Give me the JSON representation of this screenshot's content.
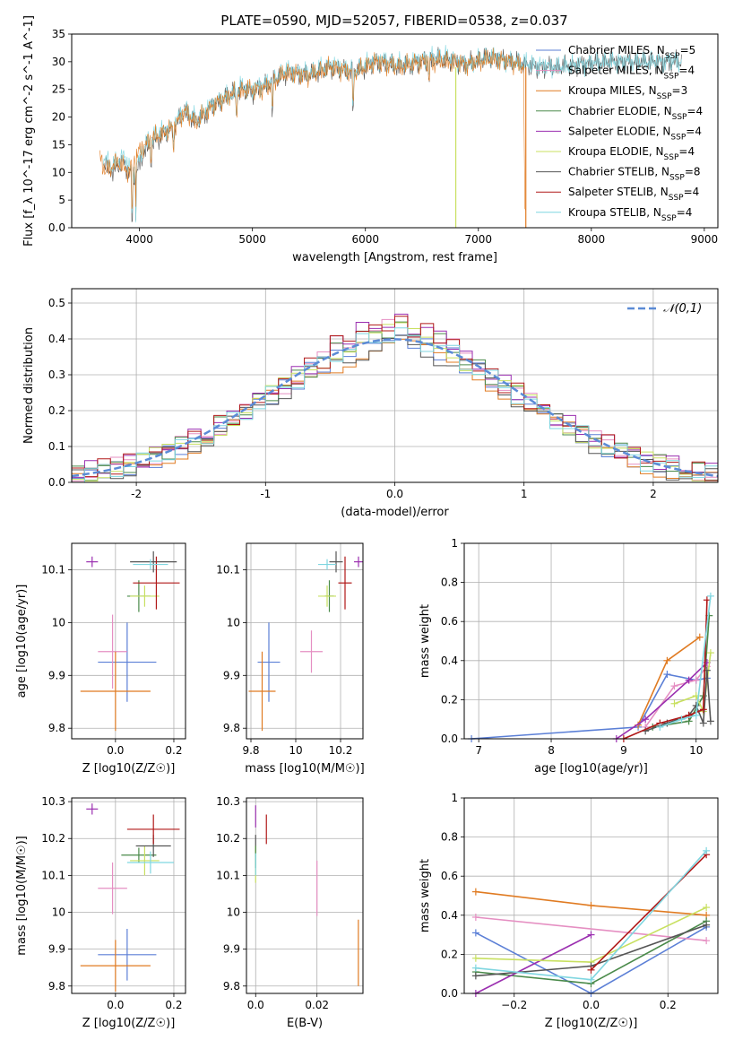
{
  "figure_title": "PLATE=0590, MJD=52057, FIBERID=0538, z=0.037",
  "colors": {
    "Chabrier MILES": "#5b7fd6",
    "Salpeter MILES": "#e58fc2",
    "Kroupa MILES": "#e07b22",
    "Chabrier ELODIE": "#4a8a4a",
    "Salpeter ELODIE": "#9b2fb0",
    "Kroupa ELODIE": "#c8e060",
    "Chabrier STELIB": "#555555",
    "Salpeter STELIB": "#b01818",
    "Kroupa STELIB": "#7fd6e0"
  },
  "chart_data": [
    {
      "id": "spectrum",
      "type": "line",
      "title": "PLATE=0590, MJD=52057, FIBERID=0538, z=0.037",
      "xlabel": "wavelength [Angstrom, rest frame]",
      "ylabel": "Flux [f_λ 10^-17 erg cm^-2 s^-1 A^-1]",
      "xlim": [
        3400,
        9120
      ],
      "ylim": [
        0,
        35
      ],
      "xticks": [
        4000,
        5000,
        6000,
        7000,
        8000,
        9000
      ],
      "yticks": [
        0,
        5,
        10,
        15,
        20,
        25,
        30,
        35
      ],
      "grid": false,
      "legend_position": "right",
      "legend": [
        "Chabrier MILES, N_SSP=5",
        "Salpeter MILES, N_SSP=4",
        "Kroupa MILES, N_SSP=3",
        "Chabrier ELODIE, N_SSP=4",
        "Salpeter ELODIE, N_SSP=4",
        "Kroupa ELODIE, N_SSP=4",
        "Chabrier STELIB, N_SSP=8",
        "Salpeter STELIB, N_SSP=4",
        "Kroupa STELIB, N_SSP=4"
      ],
      "series": [
        {
          "name": "Chabrier STELIB",
          "x": [
            3680,
            3750,
            3850,
            3950,
            4050,
            4150,
            4300,
            4400,
            4500,
            4650,
            4800,
            4900,
            5000,
            5150,
            5300,
            5500,
            5700,
            5900,
            6100,
            6300,
            6500,
            6700,
            6900,
            7100,
            7300,
            7500,
            7700,
            7900,
            8100,
            8300,
            8500,
            8700,
            8800
          ],
          "y": [
            12,
            10,
            12,
            9,
            14,
            16,
            18,
            21,
            19,
            22,
            24,
            25,
            24.5,
            26,
            28,
            27.5,
            29,
            28,
            30,
            29,
            30,
            30.5,
            29.5,
            31,
            30,
            29,
            29,
            29.5,
            30,
            30,
            30,
            30,
            30
          ]
        },
        {
          "name": "Kroupa STELIB",
          "x": [
            3680,
            3750,
            3850,
            3950,
            4050,
            4150,
            4300,
            4400,
            4500,
            4650,
            4800,
            4900,
            5000,
            5150,
            5300,
            5500,
            5700,
            5900,
            6100,
            6300,
            6500,
            6700,
            6900,
            7100,
            7300,
            7500,
            7700,
            7900,
            8100,
            8300,
            8500,
            8700,
            8800
          ],
          "y": [
            13,
            11,
            13,
            10,
            15,
            17,
            18.5,
            21.5,
            19.5,
            22.5,
            24,
            25.5,
            25,
            26.5,
            28.5,
            28,
            29.5,
            28.5,
            30.5,
            29.5,
            30.5,
            31,
            29.5,
            31,
            30,
            29.5,
            29,
            29.5,
            30,
            30,
            30,
            30.2,
            30
          ]
        },
        {
          "name": "Kroupa MILES",
          "x": [
            3650,
            3700,
            3800,
            3900,
            4000,
            4100,
            4200,
            4300,
            4400,
            4500,
            4650,
            4800,
            4950,
            5100,
            5300,
            5500,
            5700,
            5900,
            6100,
            6300,
            6500,
            6700,
            6900,
            7100,
            7300,
            7400,
            7410,
            7420
          ],
          "y": [
            13,
            10,
            12,
            10,
            14,
            16,
            17,
            18,
            21,
            19,
            22,
            24,
            25,
            25,
            28,
            27.5,
            29,
            28,
            30,
            29,
            30,
            30,
            29.5,
            30.5,
            30,
            29,
            5,
            0
          ]
        }
      ],
      "annotations": [
        {
          "series": "Kroupa ELODIE",
          "type": "drop",
          "x": 6800,
          "to": 0
        },
        {
          "series": "Kroupa MILES",
          "type": "cutoff",
          "x": 7420,
          "to": 0
        }
      ]
    },
    {
      "id": "residuals",
      "type": "histogram",
      "xlabel": "(data-model)/error",
      "ylabel": "Normed distribution",
      "xlim": [
        -2.5,
        2.5
      ],
      "ylim": [
        0,
        0.54
      ],
      "xticks": [
        -2,
        -1,
        0,
        1,
        2
      ],
      "yticks": [
        0.0,
        0.1,
        0.2,
        0.3,
        0.4,
        0.5
      ],
      "grid": true,
      "legend_position": "top-right",
      "reference_curve": {
        "name": "𝒩(0,1)",
        "mu": 0,
        "sigma": 1,
        "style": "dashed"
      },
      "bin_edges": [
        -2.5,
        -2.4,
        -2.3,
        -2.2,
        -2.1,
        -2.0,
        -1.9,
        -1.8,
        -1.7,
        -1.6,
        -1.5,
        -1.4,
        -1.3,
        -1.2,
        -1.1,
        -1.0,
        -0.9,
        -0.8,
        -0.7,
        -0.6,
        -0.5,
        -0.4,
        -0.3,
        -0.2,
        -0.1,
        0.0,
        0.1,
        0.2,
        0.3,
        0.4,
        0.5,
        0.6,
        0.7,
        0.8,
        0.9,
        1.0,
        1.1,
        1.2,
        1.3,
        1.4,
        1.5,
        1.6,
        1.7,
        1.8,
        1.9,
        2.0,
        2.1,
        2.2,
        2.3,
        2.4,
        2.5
      ],
      "base_values": [
        0.018,
        0.022,
        0.03,
        0.036,
        0.045,
        0.054,
        0.066,
        0.08,
        0.096,
        0.11,
        0.13,
        0.15,
        0.17,
        0.19,
        0.215,
        0.24,
        0.262,
        0.285,
        0.31,
        0.33,
        0.35,
        0.365,
        0.38,
        0.39,
        0.4,
        0.4,
        0.39,
        0.38,
        0.365,
        0.35,
        0.33,
        0.31,
        0.285,
        0.262,
        0.24,
        0.215,
        0.19,
        0.17,
        0.15,
        0.13,
        0.11,
        0.096,
        0.08,
        0.066,
        0.054,
        0.045,
        0.036,
        0.03,
        0.022,
        0.018
      ],
      "series_offsets": [
        0.0,
        0.03,
        -0.02,
        0.025,
        0.045,
        0.02,
        -0.015,
        0.04,
        0.01
      ]
    },
    {
      "id": "age_vs_Z",
      "type": "errorbar",
      "xlabel": "Z [log10(Z/Z☉)]",
      "ylabel": "age  [log10(age/yr)]",
      "xlim": [
        -0.15,
        0.24
      ],
      "ylim": [
        9.78,
        10.15
      ],
      "xticks": [
        0.0,
        0.2
      ],
      "yticks": [
        9.8,
        9.9,
        10.0,
        10.1
      ],
      "grid": true,
      "points": [
        {
          "series": "Chabrier MILES",
          "x": 0.04,
          "y": 9.925,
          "xerr": 0.1,
          "yerr": 0.075
        },
        {
          "series": "Salpeter MILES",
          "x": -0.01,
          "y": 9.945,
          "xerr": 0.05,
          "yerr": 0.07
        },
        {
          "series": "Kroupa MILES",
          "x": 0.0,
          "y": 9.87,
          "xerr": 0.12,
          "yerr": 0.075
        },
        {
          "series": "Chabrier ELODIE",
          "x": 0.08,
          "y": 10.05,
          "xerr": 0.04,
          "yerr": 0.03
        },
        {
          "series": "Salpeter ELODIE",
          "x": -0.08,
          "y": 10.115,
          "xerr": 0.02,
          "yerr": 0.01
        },
        {
          "series": "Kroupa ELODIE",
          "x": 0.1,
          "y": 10.05,
          "xerr": 0.05,
          "yerr": 0.02
        },
        {
          "series": "Chabrier STELIB",
          "x": 0.13,
          "y": 10.115,
          "xerr": 0.08,
          "yerr": 0.02
        },
        {
          "series": "Salpeter STELIB",
          "x": 0.14,
          "y": 10.075,
          "xerr": 0.08,
          "yerr": 0.05
        },
        {
          "series": "Kroupa STELIB",
          "x": 0.12,
          "y": 10.11,
          "xerr": 0.06,
          "yerr": 0.01
        }
      ]
    },
    {
      "id": "age_vs_mass",
      "type": "errorbar",
      "xlabel": "mass [log10(M/M☉)]",
      "ylabel": "",
      "xlim": [
        9.78,
        10.3
      ],
      "ylim": [
        9.78,
        10.15
      ],
      "xticks": [
        9.8,
        10.0,
        10.2
      ],
      "yticks": [
        9.8,
        9.9,
        10.0,
        10.1
      ],
      "grid": true,
      "points": [
        {
          "series": "Chabrier MILES",
          "x": 9.88,
          "y": 9.925,
          "xerr": 0.05,
          "yerr": 0.075
        },
        {
          "series": "Salpeter MILES",
          "x": 10.07,
          "y": 9.945,
          "xerr": 0.05,
          "yerr": 0.04
        },
        {
          "series": "Kroupa MILES",
          "x": 9.85,
          "y": 9.87,
          "xerr": 0.06,
          "yerr": 0.075
        },
        {
          "series": "Chabrier ELODIE",
          "x": 10.15,
          "y": 10.05,
          "xerr": 0.02,
          "yerr": 0.03
        },
        {
          "series": "Salpeter ELODIE",
          "x": 10.28,
          "y": 10.115,
          "xerr": 0.02,
          "yerr": 0.01
        },
        {
          "series": "Kroupa ELODIE",
          "x": 10.14,
          "y": 10.05,
          "xerr": 0.04,
          "yerr": 0.02
        },
        {
          "series": "Chabrier STELIB",
          "x": 10.18,
          "y": 10.115,
          "xerr": 0.03,
          "yerr": 0.02
        },
        {
          "series": "Salpeter STELIB",
          "x": 10.22,
          "y": 10.075,
          "xerr": 0.03,
          "yerr": 0.05
        },
        {
          "series": "Kroupa STELIB",
          "x": 10.14,
          "y": 10.11,
          "xerr": 0.04,
          "yerr": 0.01
        }
      ]
    },
    {
      "id": "massweight_vs_age",
      "type": "line",
      "xlabel": "age  [log10(age/yr)]",
      "ylabel": "mass weight",
      "xlim": [
        6.8,
        10.3
      ],
      "ylim": [
        0,
        1
      ],
      "xticks": [
        7,
        8,
        9,
        10
      ],
      "yticks": [
        0.0,
        0.2,
        0.4,
        0.6,
        0.8,
        1.0
      ],
      "grid": true,
      "series": [
        {
          "name": "Chabrier MILES",
          "x": [
            6.9,
            9.2,
            9.6,
            10.0,
            10.15
          ],
          "y": [
            0.0,
            0.06,
            0.33,
            0.3,
            0.31
          ]
        },
        {
          "name": "Salpeter MILES",
          "x": [
            9.3,
            9.7,
            10.0,
            10.15
          ],
          "y": [
            0.06,
            0.27,
            0.3,
            0.37
          ]
        },
        {
          "name": "Kroupa MILES",
          "x": [
            9.2,
            9.6,
            10.05
          ],
          "y": [
            0.07,
            0.4,
            0.52
          ]
        },
        {
          "name": "Chabrier ELODIE",
          "x": [
            9.4,
            9.9,
            10.1,
            10.18
          ],
          "y": [
            0.06,
            0.09,
            0.22,
            0.63
          ]
        },
        {
          "name": "Salpeter ELODIE",
          "x": [
            8.9,
            9.3,
            9.9,
            10.15
          ],
          "y": [
            0.0,
            0.1,
            0.3,
            0.39
          ]
        },
        {
          "name": "Kroupa ELODIE",
          "x": [
            9.7,
            10.0,
            10.1,
            10.2
          ],
          "y": [
            0.18,
            0.22,
            0.14,
            0.44
          ]
        },
        {
          "name": "Chabrier STELIB",
          "x": [
            9.3,
            9.6,
            9.9,
            10.0,
            10.1,
            10.15,
            10.2
          ],
          "y": [
            0.04,
            0.08,
            0.12,
            0.17,
            0.08,
            0.35,
            0.09
          ]
        },
        {
          "name": "Salpeter STELIB",
          "x": [
            9.0,
            9.5,
            9.9,
            10.1,
            10.15
          ],
          "y": [
            0.0,
            0.08,
            0.12,
            0.15,
            0.71
          ]
        },
        {
          "name": "Kroupa STELIB",
          "x": [
            9.5,
            9.8,
            10.0,
            10.2
          ],
          "y": [
            0.06,
            0.1,
            0.12,
            0.73
          ]
        }
      ]
    },
    {
      "id": "mass_vs_Z",
      "type": "errorbar",
      "xlabel": "Z [log10(Z/Z☉)]",
      "ylabel": "mass [log10(M/M☉)]",
      "xlim": [
        -0.15,
        0.24
      ],
      "ylim": [
        9.78,
        10.31
      ],
      "xticks": [
        0.0,
        0.2
      ],
      "yticks": [
        9.8,
        9.9,
        10.0,
        10.1,
        10.2,
        10.3
      ],
      "grid": true,
      "points": [
        {
          "series": "Chabrier MILES",
          "x": 0.04,
          "y": 9.885,
          "xerr": 0.1,
          "yerr": 0.07
        },
        {
          "series": "Salpeter MILES",
          "x": -0.01,
          "y": 10.065,
          "xerr": 0.05,
          "yerr": 0.07
        },
        {
          "series": "Kroupa MILES",
          "x": 0.0,
          "y": 9.855,
          "xerr": 0.12,
          "yerr": 0.07
        },
        {
          "series": "Chabrier ELODIE",
          "x": 0.08,
          "y": 10.155,
          "xerr": 0.06,
          "yerr": 0.02
        },
        {
          "series": "Salpeter ELODIE",
          "x": -0.08,
          "y": 10.28,
          "xerr": 0.02,
          "yerr": 0.015
        },
        {
          "series": "Kroupa ELODIE",
          "x": 0.1,
          "y": 10.14,
          "xerr": 0.05,
          "yerr": 0.04
        },
        {
          "series": "Chabrier STELIB",
          "x": 0.13,
          "y": 10.18,
          "xerr": 0.06,
          "yerr": 0.03
        },
        {
          "series": "Salpeter STELIB",
          "x": 0.13,
          "y": 10.225,
          "xerr": 0.09,
          "yerr": 0.04
        },
        {
          "series": "Kroupa STELIB",
          "x": 0.12,
          "y": 10.135,
          "xerr": 0.08,
          "yerr": 0.03
        }
      ]
    },
    {
      "id": "mass_vs_EBV",
      "type": "errorbar",
      "xlabel": "E(B-V)",
      "ylabel": "",
      "xlim": [
        -0.003,
        0.035
      ],
      "ylim": [
        9.78,
        10.31
      ],
      "xticks": [
        0.0,
        0.02
      ],
      "yticks": [
        9.8,
        9.9,
        10.0,
        10.1,
        10.2,
        10.3
      ],
      "grid": true,
      "points": [
        {
          "series": "Salpeter MILES",
          "x": 0.02,
          "y": 10.065,
          "xerr": 0.0,
          "yerr": 0.075
        },
        {
          "series": "Kroupa MILES",
          "x": 0.0335,
          "y": 9.89,
          "xerr": 0.0,
          "yerr": 0.09
        },
        {
          "series": "Salpeter ELODIE",
          "x": 0.0,
          "y": 10.26,
          "xerr": 0.0,
          "yerr": 0.03
        },
        {
          "series": "Salpeter STELIB",
          "x": 0.0035,
          "y": 10.225,
          "xerr": 0.0,
          "yerr": 0.04
        },
        {
          "series": "Chabrier STELIB",
          "x": 0.0,
          "y": 10.18,
          "xerr": 0.0,
          "yerr": 0.03
        },
        {
          "series": "Kroupa ELODIE",
          "x": 0.0,
          "y": 10.13,
          "xerr": 0.0,
          "yerr": 0.05
        },
        {
          "series": "Chabrier ELODIE",
          "x": 0.0,
          "y": 10.15,
          "xerr": 0.0,
          "yerr": 0.03
        },
        {
          "series": "Kroupa STELIB",
          "x": 0.0,
          "y": 10.13,
          "xerr": 0.0,
          "yerr": 0.03
        }
      ]
    },
    {
      "id": "massweight_vs_Z",
      "type": "line",
      "xlabel": "Z [log10(Z/Z☉)]",
      "ylabel": "mass weight",
      "xlim": [
        -0.33,
        0.33
      ],
      "ylim": [
        0,
        1
      ],
      "xticks": [
        -0.2,
        0.0,
        0.2
      ],
      "yticks": [
        0.0,
        0.2,
        0.4,
        0.6,
        0.8,
        1.0
      ],
      "grid": true,
      "series": [
        {
          "name": "Chabrier MILES",
          "x": [
            -0.3,
            0.0,
            0.3
          ],
          "y": [
            0.31,
            0.0,
            0.34
          ]
        },
        {
          "name": "Salpeter MILES",
          "x": [
            -0.3,
            0.3
          ],
          "y": [
            0.39,
            0.27
          ]
        },
        {
          "name": "Kroupa MILES",
          "x": [
            -0.3,
            0.0,
            0.3
          ],
          "y": [
            0.52,
            0.45,
            0.4
          ]
        },
        {
          "name": "Chabrier ELODIE",
          "x": [
            -0.3,
            0.0,
            0.3
          ],
          "y": [
            0.11,
            0.05,
            0.37
          ]
        },
        {
          "name": "Salpeter ELODIE",
          "x": [
            -0.3,
            0.0
          ],
          "y": [
            0.0,
            0.3
          ]
        },
        {
          "name": "Kroupa ELODIE",
          "x": [
            -0.3,
            0.0,
            0.3
          ],
          "y": [
            0.18,
            0.16,
            0.44
          ]
        },
        {
          "name": "Chabrier STELIB",
          "x": [
            -0.3,
            0.0,
            0.3
          ],
          "y": [
            0.09,
            0.14,
            0.35
          ]
        },
        {
          "name": "Salpeter STELIB",
          "x": [
            0.0,
            0.3
          ],
          "y": [
            0.12,
            0.71
          ]
        },
        {
          "name": "Kroupa STELIB",
          "x": [
            -0.3,
            0.0,
            0.3
          ],
          "y": [
            0.13,
            0.07,
            0.73
          ]
        }
      ]
    }
  ]
}
